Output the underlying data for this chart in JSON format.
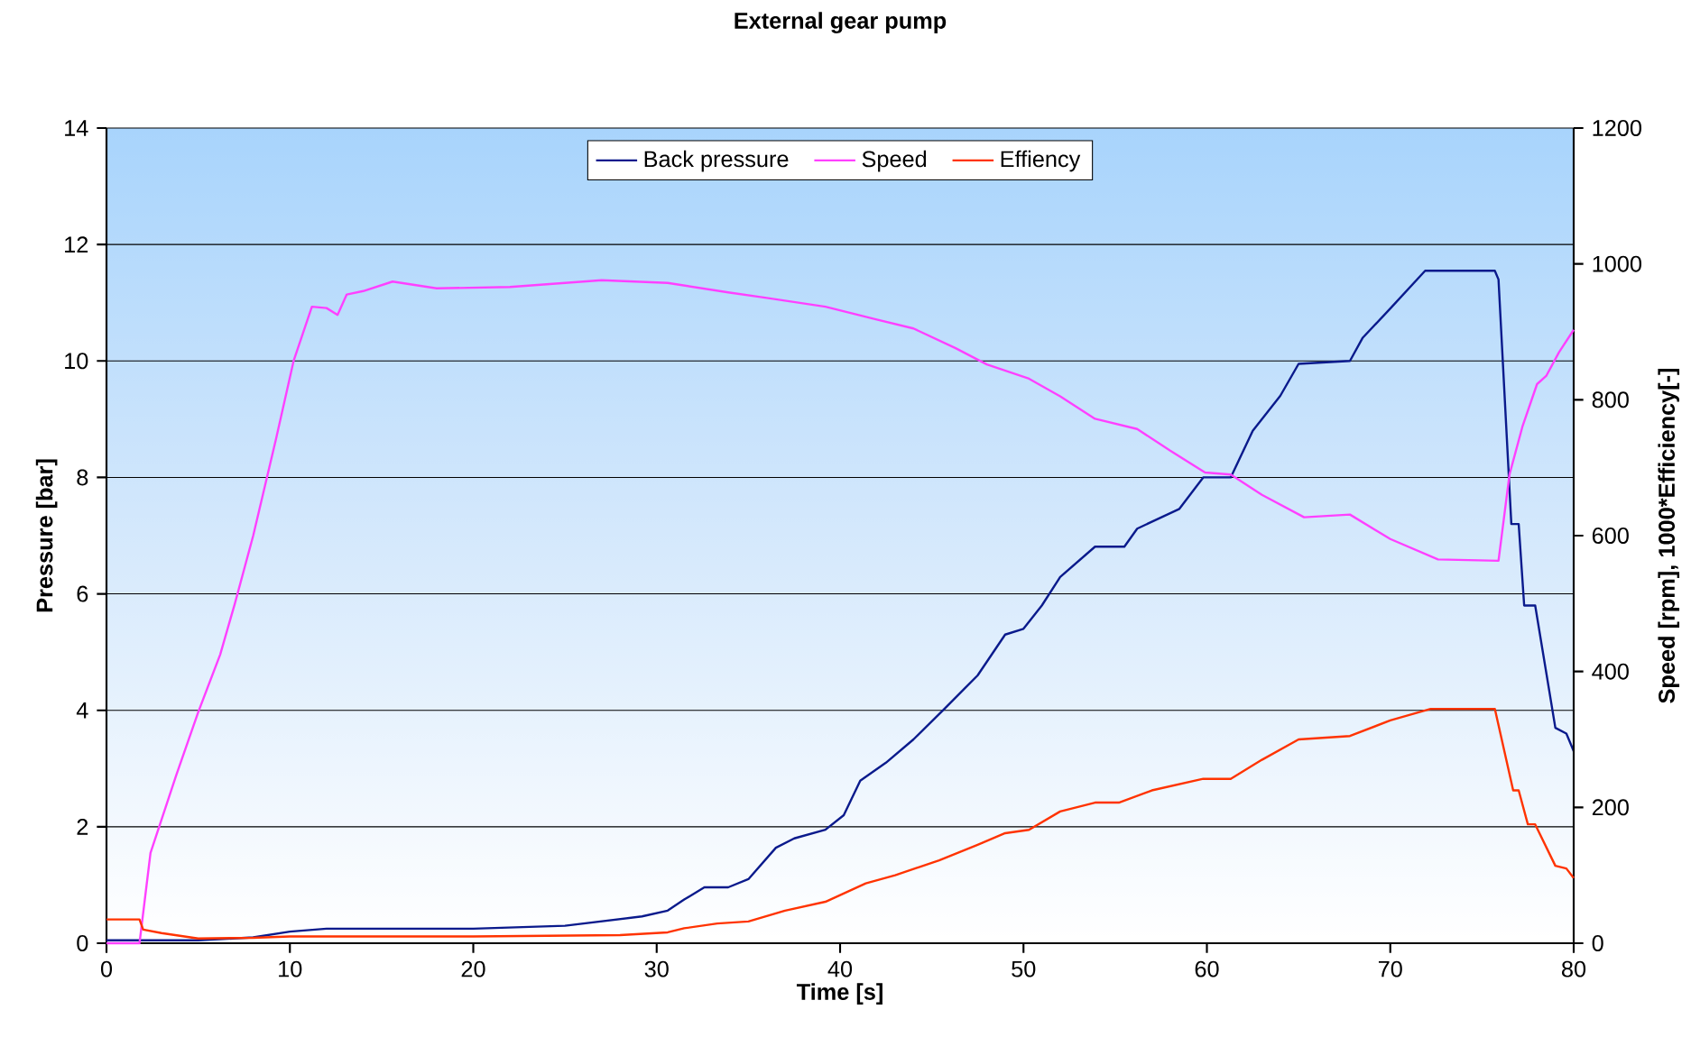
{
  "chart_data": {
    "type": "line",
    "title": "External gear pump",
    "xlabel": "Time [s]",
    "ylabel": "Pressure [bar]",
    "y2label": "Speed [rpm], 1000*Efficiency[-]",
    "xlim": [
      0,
      80
    ],
    "xticks": [
      0,
      10,
      20,
      30,
      40,
      50,
      60,
      70,
      80
    ],
    "ylim": [
      0,
      14
    ],
    "yticks": [
      0,
      2,
      4,
      6,
      8,
      10,
      12,
      14
    ],
    "y2lim": [
      0,
      1200
    ],
    "y2ticks": [
      0,
      200,
      400,
      600,
      800,
      1000,
      1200
    ],
    "grid": "y",
    "legend": "top",
    "marker": "none",
    "line_style": "solid",
    "series": [
      {
        "name": "Back pressure",
        "color": "#0a1a8c",
        "x": [
          0,
          5,
          8,
          10,
          12,
          20,
          25,
          29.2,
          30.6,
          31.5,
          32.6,
          33.9,
          35,
          36.5,
          37.5,
          39.2,
          40.2,
          41.1,
          42.5,
          44,
          45.7,
          47.5,
          49,
          50,
          51,
          52,
          53.9,
          55.5,
          56.2,
          58.5,
          59.8,
          61.3,
          62.5,
          64,
          65,
          67.8,
          68.5,
          70,
          71.9,
          75.7,
          75.9,
          76.6,
          77.0,
          77.3,
          77.9,
          79.0,
          79.6,
          80
        ],
        "values": [
          0.05,
          0.05,
          0.1,
          0.2,
          0.25,
          0.25,
          0.3,
          0.46,
          0.56,
          0.75,
          0.96,
          0.96,
          1.1,
          1.64,
          1.8,
          1.95,
          2.2,
          2.79,
          3.1,
          3.5,
          4.03,
          4.6,
          5.3,
          5.4,
          5.8,
          6.29,
          6.81,
          6.81,
          7.12,
          7.46,
          8.0,
          8.0,
          8.8,
          9.4,
          9.95,
          10.0,
          10.4,
          10.9,
          11.55,
          11.55,
          11.4,
          7.2,
          7.2,
          5.8,
          5.8,
          3.7,
          3.6,
          3.3
        ]
      },
      {
        "name": "Speed",
        "color": "#ff40ff",
        "axis": "y2",
        "x": [
          0,
          1.8,
          2.4,
          3.8,
          5,
          6.2,
          7,
          8,
          9.25,
          10.2,
          11.2,
          12,
          12.6,
          13.1,
          14,
          15.6,
          18,
          22,
          27,
          30.6,
          33.9,
          36,
          39.2,
          42,
          44,
          46.3,
          48,
          50.3,
          52,
          53.9,
          56.2,
          58,
          59.9,
          61.3,
          63,
          65.3,
          67.8,
          70,
          72.6,
          75.9,
          76.5,
          77.2,
          78,
          78.5,
          79.2,
          80
        ],
        "values": [
          0,
          0,
          133,
          247,
          340,
          425,
          500,
          600,
          743,
          857,
          937,
          935,
          925,
          955,
          960,
          974,
          964,
          966,
          976,
          972,
          958,
          950,
          937,
          918,
          905,
          876,
          852,
          831,
          805,
          772,
          757,
          725,
          693,
          690,
          660,
          627,
          631,
          595,
          565,
          563,
          690,
          760,
          823,
          835,
          870,
          903
        ]
      },
      {
        "name": "Effiency",
        "color": "#ff3300",
        "axis": "y2",
        "x": [
          0,
          1.8,
          2,
          3,
          5,
          8,
          10,
          20,
          28,
          30.6,
          31.5,
          33.3,
          35,
          37,
          39.2,
          41.4,
          43,
          45.4,
          47.5,
          49,
          50.3,
          52,
          53.9,
          55.2,
          57,
          59.8,
          61.3,
          63,
          65,
          67.8,
          70,
          72.2,
          75.7,
          76.7,
          77.0,
          77.5,
          77.9,
          79.0,
          79.6,
          80
        ],
        "values": [
          35,
          35,
          20,
          15,
          7,
          8,
          10,
          10,
          12,
          16,
          22,
          29,
          32,
          48,
          61,
          88,
          100,
          122,
          145,
          162,
          167,
          194,
          207,
          207,
          225,
          242,
          242,
          270,
          300,
          305,
          328,
          345,
          345,
          225,
          225,
          175,
          175,
          114,
          110,
          96
        ]
      }
    ]
  }
}
